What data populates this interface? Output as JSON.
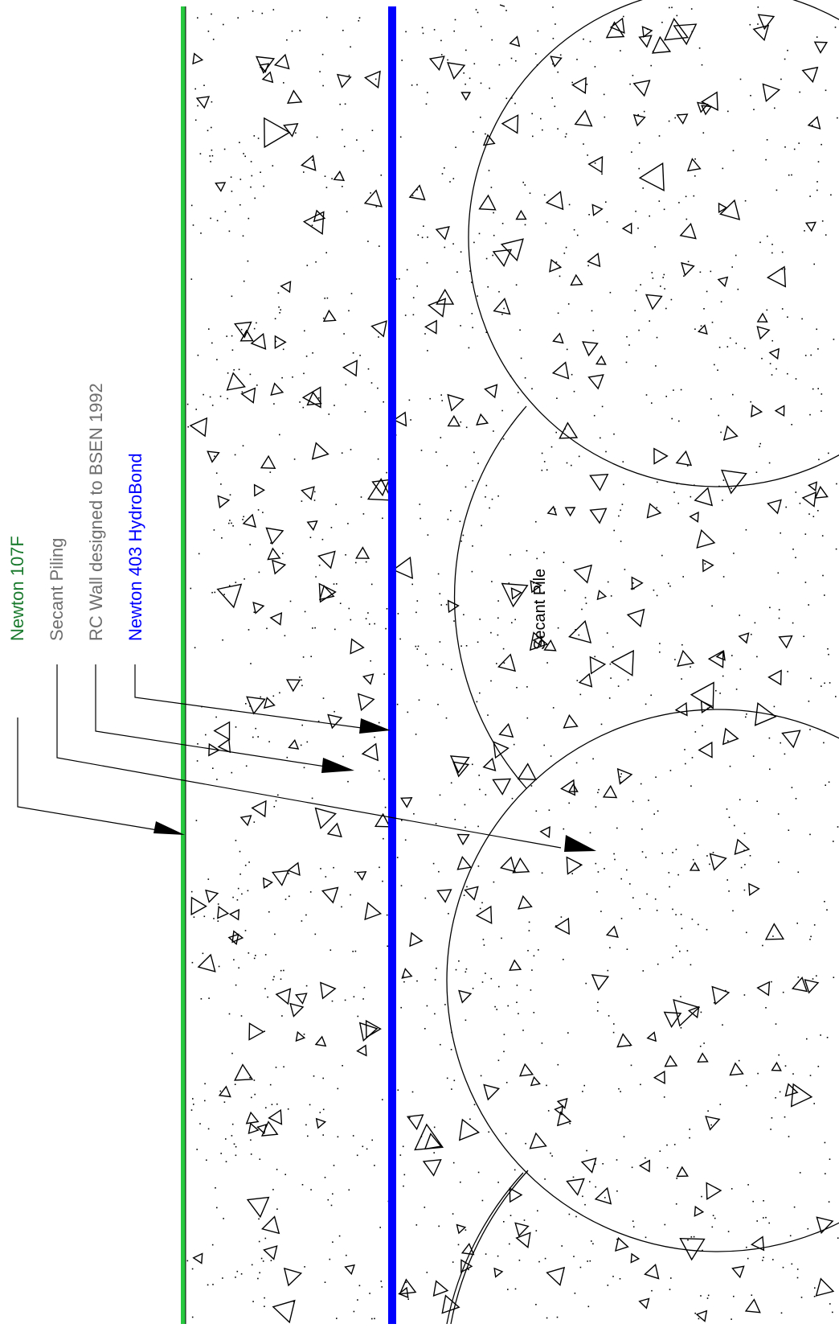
{
  "labels": {
    "newton_107f": "Newton 107F",
    "secant_piling": "Secant Piling",
    "rc_wall": "RC Wall designed to BSEN 1992",
    "newton_403": "Newton 403 HydroBond",
    "secant_pile": "Secant Pile"
  },
  "colors": {
    "newton_107f_text": "#1a7a2e",
    "green_membrane": "#27c93f",
    "blue_membrane": "#0000ff",
    "grey_text": "#6e6e6e",
    "linework": "#000000"
  }
}
